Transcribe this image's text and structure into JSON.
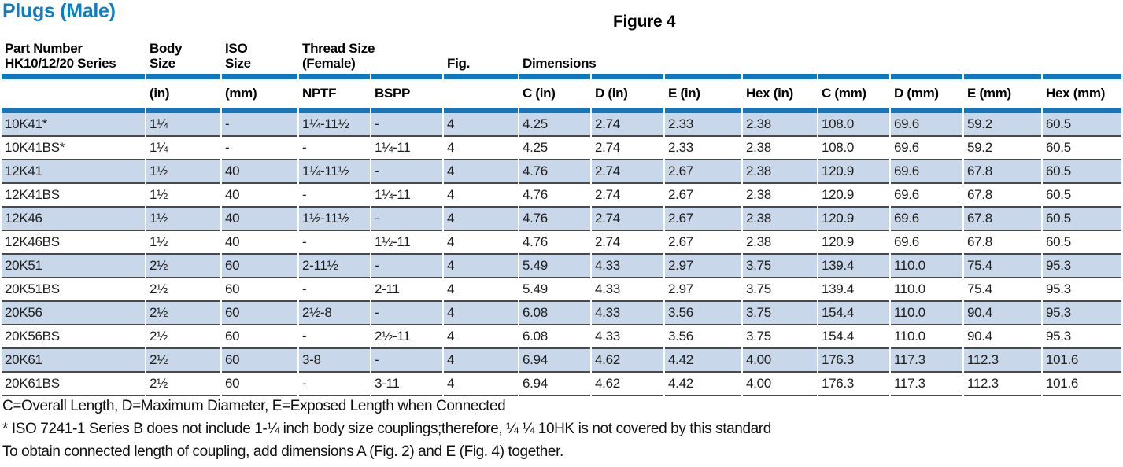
{
  "page": {
    "title": "Plugs (Male)",
    "figure_label": "Figure 4"
  },
  "colors": {
    "title_blue": "#0e7ec3",
    "accent_blue": "#1178bf",
    "row_blue": "#c8d7ea",
    "separator": "#4a4a4a"
  },
  "table": {
    "group_headers": [
      "Part Number\nHK10/12/20 Series",
      "Body\nSize",
      "ISO\nSize",
      "Thread Size\n(Female)",
      "Fig.",
      "Dimensions"
    ],
    "sub_headers": [
      "",
      "(in)",
      "(mm)",
      "NPTF",
      "BSPP",
      "",
      "C (in)",
      "D (in)",
      "E (in)",
      "Hex (in)",
      "C (mm)",
      "D (mm)",
      "E (mm)",
      "Hex (mm)"
    ],
    "rows": [
      [
        "10K41*",
        "1¼",
        "-",
        "1¼-11½",
        "-",
        "4",
        "4.25",
        "2.74",
        "2.33",
        "2.38",
        "108.0",
        "69.6",
        "59.2",
        "60.5"
      ],
      [
        "10K41BS*",
        "1¼",
        "-",
        "-",
        "1¼-11",
        "4",
        "4.25",
        "2.74",
        "2.33",
        "2.38",
        "108.0",
        "69.6",
        "59.2",
        "60.5"
      ],
      [
        "12K41",
        "1½",
        "40",
        "1¼-11½",
        "-",
        "4",
        "4.76",
        "2.74",
        "2.67",
        "2.38",
        "120.9",
        "69.6",
        "67.8",
        "60.5"
      ],
      [
        "12K41BS",
        "1½",
        "40",
        "-",
        "1¼-11",
        "4",
        "4.76",
        "2.74",
        "2.67",
        "2.38",
        "120.9",
        "69.6",
        "67.8",
        "60.5"
      ],
      [
        "12K46",
        "1½",
        "40",
        "1½-11½",
        "-",
        "4",
        "4.76",
        "2.74",
        "2.67",
        "2.38",
        "120.9",
        "69.6",
        "67.8",
        "60.5"
      ],
      [
        "12K46BS",
        "1½",
        "40",
        "-",
        "1½-11",
        "4",
        "4.76",
        "2.74",
        "2.67",
        "2.38",
        "120.9",
        "69.6",
        "67.8",
        "60.5"
      ],
      [
        "20K51",
        "2½",
        "60",
        "2-11½",
        "-",
        "4",
        "5.49",
        "4.33",
        "2.97",
        "3.75",
        "139.4",
        "110.0",
        "75.4",
        "95.3"
      ],
      [
        "20K51BS",
        "2½",
        "60",
        "-",
        "2-11",
        "4",
        "5.49",
        "4.33",
        "2.97",
        "3.75",
        "139.4",
        "110.0",
        "75.4",
        "95.3"
      ],
      [
        "20K56",
        "2½",
        "60",
        "2½-8",
        "-",
        "4",
        "6.08",
        "4.33",
        "3.56",
        "3.75",
        "154.4",
        "110.0",
        "90.4",
        "95.3"
      ],
      [
        "20K56BS",
        "2½",
        "60",
        "-",
        "2½-11",
        "4",
        "6.08",
        "4.33",
        "3.56",
        "3.75",
        "154.4",
        "110.0",
        "90.4",
        "95.3"
      ],
      [
        "20K61",
        "2½",
        "60",
        "3-8",
        "-",
        "4",
        "6.94",
        "4.62",
        "4.42",
        "4.00",
        "176.3",
        "117.3",
        "112.3",
        "101.6"
      ],
      [
        "20K61BS",
        "2½",
        "60",
        "-",
        "3-11",
        "4",
        "6.94",
        "4.62",
        "4.42",
        "4.00",
        "176.3",
        "117.3",
        "112.3",
        "101.6"
      ]
    ]
  },
  "footnotes": [
    "C=Overall Length, D=Maximum Diameter, E=Exposed Length when Connected",
    "* ISO 7241-1 Series B does not include 1-¼ inch body size couplings;therefore, ¼ ¼ 10HK is not covered by this standard",
    "To obtain connected length of coupling, add dimensions A (Fig. 2) and E (Fig. 4) together."
  ]
}
